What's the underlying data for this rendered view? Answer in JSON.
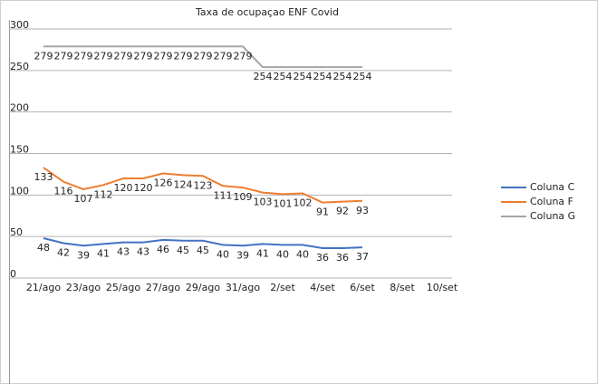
{
  "chart_data": {
    "type": "line",
    "title": "Taxa de ocupaçao ENF Covid",
    "categories": [
      "21/ago",
      null,
      "23/ago",
      null,
      "25/ago",
      null,
      "27/ago",
      null,
      "29/ago",
      null,
      "31/ago",
      null,
      "2/set",
      null,
      "4/set",
      null,
      "6/set",
      null,
      "8/set",
      null,
      "10/set"
    ],
    "series": [
      {
        "name": "Coluna C",
        "color": "#4472c4",
        "values": [
          48,
          42,
          39,
          41,
          43,
          43,
          46,
          45,
          45,
          40,
          39,
          41,
          40,
          40,
          36,
          36,
          37,
          null,
          null,
          null,
          null
        ]
      },
      {
        "name": "Coluna F",
        "color": "#ed7d31",
        "values": [
          133,
          116,
          107,
          112,
          120,
          120,
          126,
          124,
          123,
          111,
          109,
          103,
          101,
          102,
          91,
          92,
          93,
          null,
          null,
          null,
          null
        ]
      },
      {
        "name": "Coluna G",
        "color": "#a5a5a5",
        "values": [
          279,
          279,
          279,
          279,
          279,
          279,
          279,
          279,
          279,
          279,
          279,
          254,
          254,
          254,
          254,
          254,
          254,
          null,
          null,
          null,
          null
        ]
      }
    ],
    "ylim": [
      0,
      300
    ],
    "yticks": [
      0,
      50,
      100,
      150,
      200,
      250,
      300
    ],
    "grid": true,
    "legend": "right",
    "data_labels": true
  }
}
